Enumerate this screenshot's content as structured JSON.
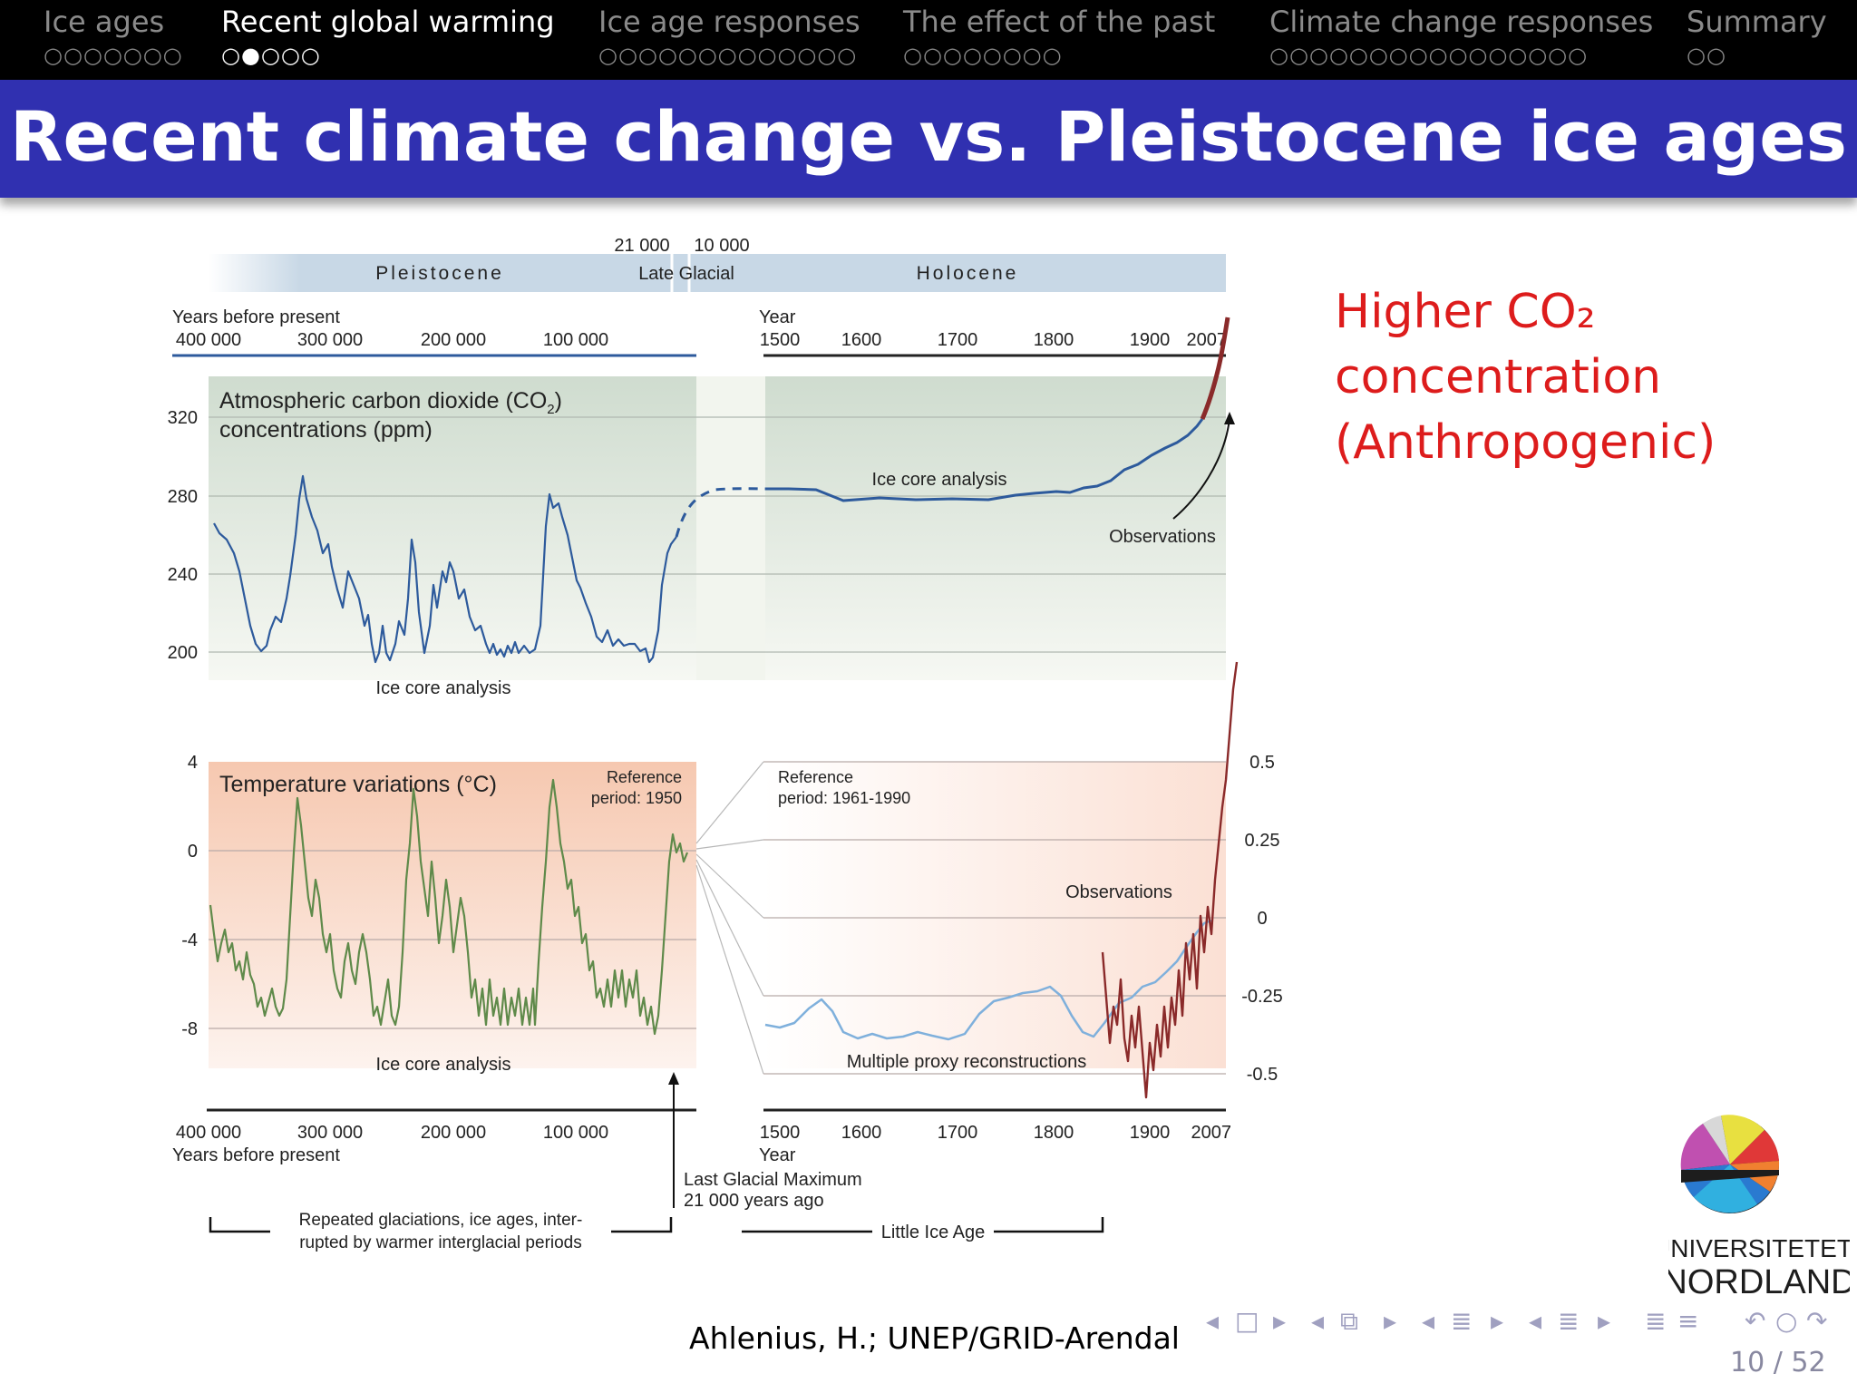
{
  "nav": {
    "sections": [
      {
        "title": "Ice ages",
        "dots": "○○○○○○○",
        "active": false
      },
      {
        "title": "Recent global warming",
        "dots": "○●○○○",
        "active": true
      },
      {
        "title": "Ice age responses",
        "dots": "○○○○○○○○○○○○○",
        "active": false
      },
      {
        "title": "The effect of the past",
        "dots": "○○○○○○○○",
        "active": false
      },
      {
        "title": "Climate change responses",
        "dots": "○○○○○○○○○○○○○○○○",
        "active": false
      },
      {
        "title": "Summary",
        "dots": "○○",
        "active": false
      }
    ]
  },
  "slide": {
    "title": "Recent climate change vs. Pleistocene ice ages",
    "side_note": {
      "line1": "Higher CO₂",
      "line2": "concentration",
      "line3": "(Anthropogenic)"
    },
    "source": "Ahlenius, H.; UNEP/GRID-Arendal",
    "page": "10 / 52"
  },
  "logo": {
    "line1": "UNIVERSITETET I",
    "line2": "NORDLAND"
  },
  "colors": {
    "nav_bg": "#000000",
    "title_bar": "#3030b0",
    "accent_red": "#dd1c1c",
    "co2_line": "#2d5a9c",
    "temp_line": "#5f8a4a",
    "observations": "#8a2a2a",
    "proxy": "#7fb0dc",
    "epoch_band": "#c8d8e6"
  },
  "figure": {
    "epochs": {
      "pleistocene": "Pleistocene",
      "late_glacial": "Late Glacial",
      "holocene": "Holocene",
      "mark_21000": "21 000",
      "mark_10000": "10 000"
    },
    "top_axis": {
      "left_caption": "Years before present",
      "left_ticks": [
        "400 000",
        "300 000",
        "200 000",
        "100 000"
      ],
      "right_caption": "Year",
      "right_ticks": [
        "1500",
        "1600",
        "1700",
        "1800",
        "1900",
        "2007"
      ]
    },
    "bottom_axis": {
      "left_caption": "Years before present",
      "left_ticks": [
        "400 000",
        "300 000",
        "200 000",
        "100 000"
      ],
      "right_caption": "Year",
      "right_ticks": [
        "1500",
        "1600",
        "1700",
        "1800",
        "1900",
        "2007"
      ]
    },
    "co2_panel": {
      "title_line1": "Atmospheric carbon dioxide (CO",
      "title_sub": "2",
      "title_close": ")",
      "title_line2": "concentrations (ppm)",
      "y_ticks": [
        "320",
        "280",
        "240",
        "200"
      ],
      "label_ice_core_left": "Ice core analysis",
      "label_ice_core_right": "Ice core analysis",
      "label_observations": "Observations"
    },
    "temp_panel": {
      "title": "Temperature variations (°C)",
      "ref_left_line1": "Reference",
      "ref_left_line2": "period: 1950",
      "ref_right_line1": "Reference",
      "ref_right_line2": "period: 1961-1990",
      "y_ticks_left": [
        "4",
        "0",
        "-4",
        "-8"
      ],
      "y_ticks_right": [
        "0.5",
        "0.25",
        "0",
        "-0.25",
        "-0.5"
      ],
      "label_ice_core": "Ice core analysis",
      "label_observations": "Observations",
      "label_proxy": "Multiple proxy reconstructions"
    },
    "annotations": {
      "lgm_line1": "Last Glacial Maximum",
      "lgm_line2": "21 000 years ago",
      "glaciations_line1": "Repeated glaciations, ice ages, inter-",
      "glaciations_line2": "rupted by warmer interglacial periods",
      "little_ice_age": "Little Ice Age"
    }
  },
  "beamer_nav": {
    "symbols": [
      "◂",
      "□",
      "▸",
      "◂",
      "⧉",
      "▸",
      "◂",
      "≣",
      "▸",
      "◂",
      "≣",
      "▸",
      "≣",
      "≡",
      "↶",
      "○",
      "↷"
    ]
  }
}
